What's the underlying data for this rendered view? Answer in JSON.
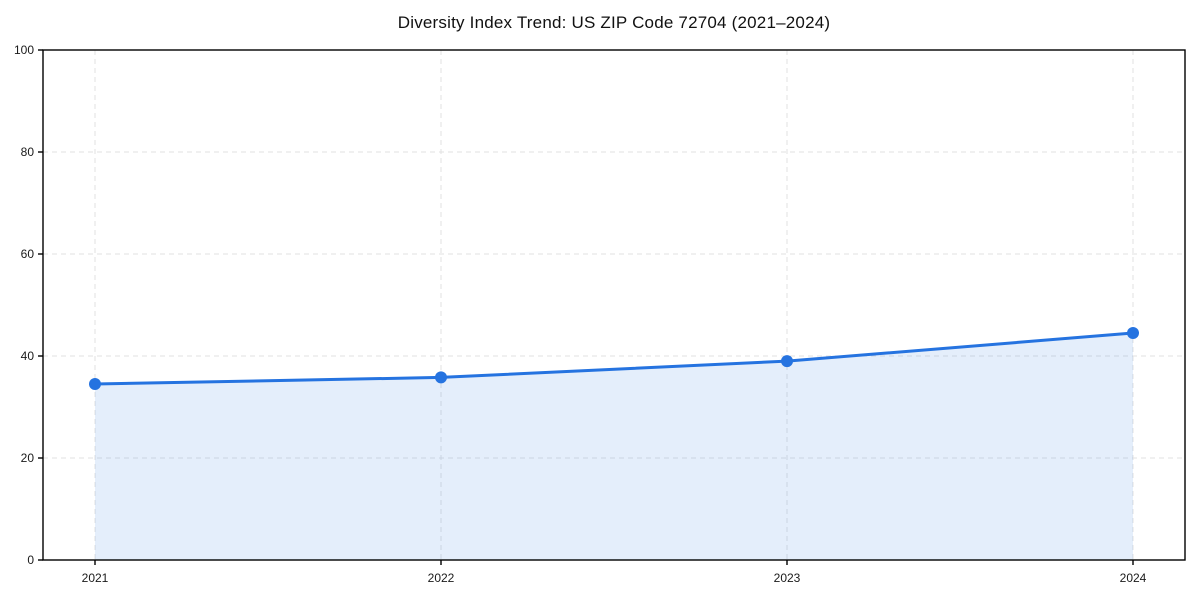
{
  "chart_data": {
    "type": "area",
    "title": "Diversity Index Trend: US ZIP Code 72704 (2021–2024)",
    "x": [
      2021,
      2022,
      2023,
      2024
    ],
    "xticklabels": [
      "2021",
      "2022",
      "2023",
      "2024"
    ],
    "series": [
      {
        "name": "Diversity Index",
        "values": [
          34.5,
          35.8,
          39.0,
          44.5
        ]
      }
    ],
    "xlabel": "",
    "ylabel": "",
    "ylim": [
      0,
      100
    ],
    "yticks": [
      0,
      20,
      40,
      60,
      80,
      100
    ],
    "grid": true,
    "grid_style": "dashed",
    "legend_position": "none",
    "line_color": "#2573e0",
    "marker": "circle",
    "marker_radius": 6,
    "line_width": 3,
    "fill_color": "#2573e0",
    "fill_opacity": 0.12,
    "grid_color": "#e2e2e2",
    "axis_color": "#000000",
    "tick_color": "#000000",
    "background_color": "#ffffff"
  }
}
